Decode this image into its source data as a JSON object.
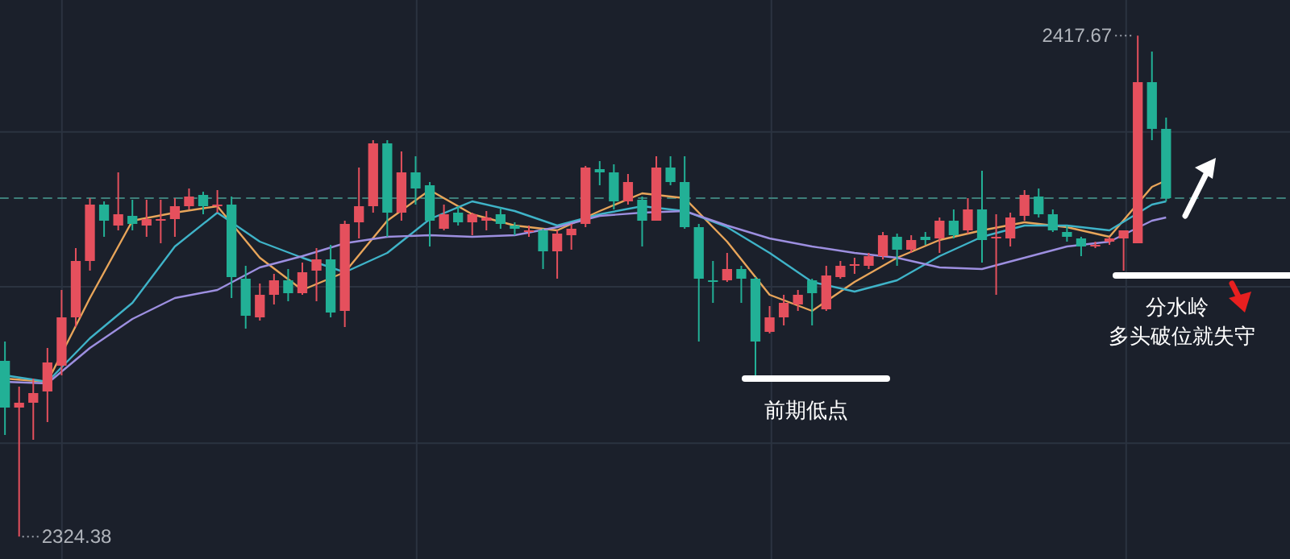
{
  "chart_data": {
    "type": "candlestick",
    "categories": [
      null,
      null,
      null,
      null,
      null,
      null,
      null,
      null,
      null,
      null,
      null,
      null,
      null,
      null,
      null,
      null,
      null,
      null,
      null,
      null,
      null,
      null,
      null,
      null,
      null,
      null,
      null,
      null,
      null,
      null,
      null,
      null,
      null,
      null,
      null,
      null,
      null,
      null,
      null,
      null,
      null,
      null,
      null,
      null,
      null,
      null,
      null,
      null,
      null,
      null,
      null,
      null,
      null,
      null,
      null,
      null,
      null,
      null,
      null,
      null,
      null,
      null,
      null,
      null,
      null,
      null,
      null,
      null,
      null,
      null,
      null,
      null,
      null,
      null,
      null,
      null,
      null,
      null,
      null,
      null,
      null,
      null,
      null
    ],
    "ohlc": [
      [
        2357.1,
        2360.7,
        2343.3,
        2348.4
      ],
      [
        2348.4,
        2352.3,
        2324.38,
        2349.3
      ],
      [
        2349.3,
        2353.8,
        2342.4,
        2351.1
      ],
      [
        2351.4,
        2359.5,
        2345.7,
        2356.8
      ],
      [
        2356.2,
        2370.3,
        2354.4,
        2365.2
      ],
      [
        2365.2,
        2378.1,
        2363.4,
        2375.7
      ],
      [
        2375.7,
        2387.4,
        2373.9,
        2386.2
      ],
      [
        2386.2,
        2386.8,
        2380.2,
        2383.2
      ],
      [
        2382.3,
        2392.2,
        2381.4,
        2384.4
      ],
      [
        2384.1,
        2387.1,
        2381.4,
        2382.6
      ],
      [
        2382.3,
        2387.1,
        2380.2,
        2383.5
      ],
      [
        2383.2,
        2387.1,
        2379.0,
        2383.5
      ],
      [
        2383.5,
        2387.4,
        2380.2,
        2385.9
      ],
      [
        2385.9,
        2389.2,
        2385.3,
        2387.7
      ],
      [
        2388.0,
        2388.6,
        2384.4,
        2385.9
      ],
      [
        2385.9,
        2388.9,
        2384.7,
        2386.2
      ],
      [
        2386.2,
        2387.7,
        2368.8,
        2372.7
      ],
      [
        2372.4,
        2374.8,
        2363.1,
        2365.5
      ],
      [
        2365.2,
        2371.5,
        2364.6,
        2369.4
      ],
      [
        2369.4,
        2373.3,
        2367.6,
        2372.1
      ],
      [
        2372.1,
        2374.2,
        2368.2,
        2369.7
      ],
      [
        2369.7,
        2375.4,
        2369.4,
        2373.6
      ],
      [
        2373.9,
        2378.1,
        2368.2,
        2376.0
      ],
      [
        2376.0,
        2378.7,
        2365.2,
        2366.1
      ],
      [
        2366.4,
        2383.2,
        2363.4,
        2382.6
      ],
      [
        2382.9,
        2393.1,
        2379.9,
        2385.9
      ],
      [
        2385.9,
        2398.2,
        2384.7,
        2397.6
      ],
      [
        2397.6,
        2398.2,
        2380.2,
        2384.7
      ],
      [
        2384.7,
        2396.1,
        2383.2,
        2392.2
      ],
      [
        2392.2,
        2395.2,
        2386.2,
        2389.2
      ],
      [
        2389.8,
        2390.4,
        2378.4,
        2383.2
      ],
      [
        2381.7,
        2386.2,
        2381.4,
        2384.4
      ],
      [
        2384.7,
        2385.9,
        2382.3,
        2382.9
      ],
      [
        2382.9,
        2384.7,
        2380.5,
        2384.4
      ],
      [
        2383.2,
        2385.0,
        2381.4,
        2383.8
      ],
      [
        2384.4,
        2385.6,
        2381.7,
        2382.6
      ],
      [
        2382.3,
        2382.9,
        2380.5,
        2381.7
      ],
      [
        2381.1,
        2382.3,
        2380.2,
        2381.4
      ],
      [
        2381.4,
        2381.7,
        2374.2,
        2377.5
      ],
      [
        2377.5,
        2381.4,
        2372.4,
        2380.8
      ],
      [
        2380.5,
        2382.6,
        2377.8,
        2381.7
      ],
      [
        2382.6,
        2393.4,
        2382.0,
        2393.1
      ],
      [
        2392.8,
        2394.3,
        2389.8,
        2392.2
      ],
      [
        2392.2,
        2393.7,
        2385.3,
        2386.8
      ],
      [
        2386.8,
        2391.9,
        2386.2,
        2390.4
      ],
      [
        2387.1,
        2387.7,
        2378.4,
        2383.2
      ],
      [
        2383.2,
        2395.2,
        2383.2,
        2393.1
      ],
      [
        2393.1,
        2395.2,
        2389.8,
        2390.4
      ],
      [
        2390.4,
        2395.2,
        2381.7,
        2382.0
      ],
      [
        2382.0,
        2382.6,
        2360.7,
        2372.4
      ],
      [
        2372.1,
        2375.7,
        2367.9,
        2371.8
      ],
      [
        2372.1,
        2377.2,
        2371.8,
        2374.2
      ],
      [
        2374.2,
        2374.8,
        2367.9,
        2372.4
      ],
      [
        2372.4,
        2372.7,
        2354.4,
        2360.7
      ],
      [
        2362.5,
        2367.3,
        2362.2,
        2365.2
      ],
      [
        2365.2,
        2369.4,
        2363.7,
        2367.9
      ],
      [
        2367.6,
        2370.3,
        2366.4,
        2369.4
      ],
      [
        2372.1,
        2372.4,
        2363.7,
        2369.7
      ],
      [
        2366.7,
        2374.8,
        2366.4,
        2373.0
      ],
      [
        2372.7,
        2375.7,
        2372.4,
        2374.8
      ],
      [
        2374.8,
        2376.3,
        2373.3,
        2375.1
      ],
      [
        2374.8,
        2377.2,
        2374.2,
        2376.6
      ],
      [
        2376.6,
        2381.1,
        2376.0,
        2380.5
      ],
      [
        2380.2,
        2380.8,
        2374.8,
        2377.8
      ],
      [
        2377.8,
        2380.5,
        2377.2,
        2379.6
      ],
      [
        2380.2,
        2381.1,
        2378.7,
        2379.6
      ],
      [
        2379.9,
        2383.8,
        2377.2,
        2383.2
      ],
      [
        2383.2,
        2385.3,
        2379.9,
        2380.5
      ],
      [
        2381.4,
        2387.4,
        2380.8,
        2385.3
      ],
      [
        2385.3,
        2392.5,
        2375.4,
        2379.6
      ],
      [
        2379.9,
        2384.4,
        2369.4,
        2380.2
      ],
      [
        2379.9,
        2384.7,
        2378.4,
        2383.8
      ],
      [
        2384.1,
        2388.9,
        2383.2,
        2388.0
      ],
      [
        2387.7,
        2389.2,
        2383.8,
        2384.4
      ],
      [
        2384.4,
        2385.3,
        2381.1,
        2381.4
      ],
      [
        2381.1,
        2382.3,
        2379.3,
        2380.2
      ],
      [
        2379.9,
        2380.2,
        2376.6,
        2378.4
      ],
      [
        2378.4,
        2379.3,
        2378.1,
        2378.7
      ],
      [
        2379.3,
        2380.2,
        2378.7,
        2379.9
      ],
      [
        2379.9,
        2381.4,
        2373.9,
        2381.4
      ],
      [
        2379.0,
        2417.67,
        2379.0,
        2409.0
      ],
      [
        2409.0,
        2414.7,
        2398.2,
        2400.3
      ],
      [
        2400.3,
        2402.4,
        2386.8,
        2387.4
      ]
    ],
    "series": [
      {
        "type": "line",
        "color": "#e8a55a",
        "values": [
          2353.8,
          null,
          null,
          2353.2,
          null,
          null,
          2368.8,
          null,
          null,
          2383.2,
          null,
          null,
          2384.7,
          null,
          null,
          2385.9,
          null,
          null,
          2376.3,
          null,
          null,
          2370.3,
          null,
          null,
          2373.6,
          null,
          null,
          2383.2,
          null,
          null,
          2388.9,
          null,
          null,
          2384.4,
          null,
          null,
          2382.3,
          null,
          null,
          2381.4,
          null,
          null,
          2385.0,
          null,
          null,
          2388.3,
          null,
          null,
          2387.4,
          null,
          null,
          2379.3,
          null,
          null,
          2369.4,
          null,
          null,
          2366.4,
          null,
          null,
          2371.8,
          null,
          null,
          2376.3,
          null,
          null,
          2379.6,
          null,
          null,
          2381.4,
          null,
          null,
          2382.9,
          null,
          null,
          2382.0,
          null,
          null,
          2380.2,
          null,
          null,
          2389.5,
          2390.7
        ]
      },
      {
        "type": "line",
        "color": "#3fb3c8",
        "values": [
          2354.4,
          null,
          null,
          2353.2,
          null,
          null,
          2361.3,
          null,
          null,
          2367.9,
          null,
          null,
          2378.4,
          null,
          null,
          2384.7,
          null,
          null,
          2379.3,
          null,
          null,
          2376.3,
          null,
          null,
          2373.6,
          null,
          null,
          2377.2,
          null,
          null,
          2383.5,
          null,
          null,
          2386.8,
          null,
          null,
          2385.0,
          null,
          null,
          2382.3,
          null,
          null,
          2384.4,
          null,
          null,
          2385.9,
          null,
          null,
          2385.0,
          null,
          null,
          2382.0,
          null,
          null,
          2377.2,
          null,
          null,
          2371.8,
          null,
          null,
          2370.0,
          null,
          null,
          2372.1,
          null,
          null,
          2376.6,
          null,
          null,
          2380.2,
          null,
          null,
          2382.3,
          null,
          null,
          2382.3,
          null,
          null,
          2381.4,
          null,
          null,
          2386.2,
          2386.8
        ]
      },
      {
        "type": "line",
        "color": "#9d8fe0",
        "values": [
          2353.2,
          null,
          null,
          2352.9,
          null,
          null,
          2359.5,
          null,
          null,
          2364.9,
          null,
          null,
          2368.8,
          null,
          null,
          2370.3,
          null,
          null,
          2374.5,
          null,
          null,
          2376.6,
          null,
          null,
          2379.0,
          null,
          null,
          2380.2,
          null,
          null,
          2380.5,
          null,
          null,
          2380.2,
          null,
          null,
          2380.5,
          null,
          null,
          2382.0,
          null,
          null,
          2384.1,
          null,
          null,
          2384.7,
          null,
          null,
          2385.0,
          null,
          null,
          2382.3,
          null,
          null,
          2379.9,
          null,
          null,
          2378.4,
          null,
          null,
          2377.2,
          null,
          null,
          2376.3,
          null,
          null,
          2374.5,
          null,
          null,
          2374.2,
          null,
          null,
          2376.3,
          null,
          null,
          2378.4,
          null,
          null,
          2379.3,
          null,
          null,
          2383.2,
          2383.8
        ]
      }
    ],
    "ylim": [
      2320.2,
      2424.3
    ],
    "tick_labels": false,
    "grid": true,
    "ref_lines": [
      {
        "axis": "y",
        "value": 2387.4,
        "color": "#3e7f7a",
        "line_style": "dashed"
      },
      {
        "axis": "y",
        "value": 2353.8,
        "label": "前期低点",
        "color": "#ffffff"
      },
      {
        "axis": "y",
        "value": 2373.0,
        "label": "分水岭",
        "color": "#ffffff"
      }
    ],
    "annotations": [
      "2417.67",
      "2324.38",
      "多头破位就失守"
    ]
  }
}
